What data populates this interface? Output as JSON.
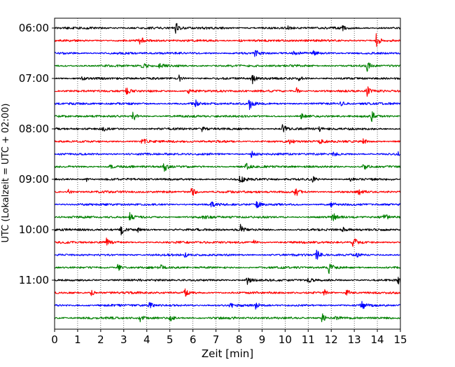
{
  "chart_data": {
    "type": "line",
    "chart_kind": "helicorder seismogram (stacked traces, 5-minute rows, 15 minutes per row)",
    "xlabel": "Zeit  [min]",
    "ylabel": "UTC (Lokalzeit = UTC + 02:00)",
    "xlim": [
      0,
      15
    ],
    "x_ticks": [
      0,
      1,
      2,
      3,
      4,
      5,
      6,
      7,
      8,
      9,
      10,
      11,
      12,
      13,
      14,
      15
    ],
    "x_tick_labels": [
      "0",
      "1",
      "2",
      "3",
      "4",
      "5",
      "6",
      "7",
      "8",
      "9",
      "10",
      "11",
      "12",
      "13",
      "14",
      "15"
    ],
    "y_tick_labels": [
      "06:00",
      "07:00",
      "08:00",
      "09:00",
      "10:00",
      "11:00"
    ],
    "vertical_grid": "dotted, every minute",
    "color_cycle": [
      "#000000",
      "#ff0000",
      "#0000ff",
      "#008000"
    ],
    "rows": [
      {
        "events": [
          {
            "t": 5.25,
            "a": 1.0
          },
          {
            "t": 6.3,
            "a": 0.35
          },
          {
            "t": 10.1,
            "a": 0.3
          },
          {
            "t": 12.5,
            "a": 0.3
          }
        ]
      },
      {
        "events": [
          {
            "t": 3.7,
            "a": 0.7
          },
          {
            "t": 8.0,
            "a": 0.25
          },
          {
            "t": 13.95,
            "a": 1.0
          }
        ]
      },
      {
        "events": [
          {
            "t": 8.7,
            "a": 0.6
          },
          {
            "t": 10.3,
            "a": 0.45
          },
          {
            "t": 11.2,
            "a": 0.4
          }
        ]
      },
      {
        "events": [
          {
            "t": 3.8,
            "a": 0.9
          },
          {
            "t": 4.55,
            "a": 0.45
          },
          {
            "t": 13.55,
            "a": 0.85
          }
        ]
      },
      {
        "events": [
          {
            "t": 1.2,
            "a": 0.3
          },
          {
            "t": 5.4,
            "a": 0.5
          },
          {
            "t": 8.55,
            "a": 1.0
          },
          {
            "t": 10.6,
            "a": 0.4
          }
        ]
      },
      {
        "events": [
          {
            "t": 3.1,
            "a": 0.75
          },
          {
            "t": 5.8,
            "a": 0.4
          },
          {
            "t": 10.5,
            "a": 0.45
          },
          {
            "t": 13.55,
            "a": 1.0
          }
        ]
      },
      {
        "events": [
          {
            "t": 6.1,
            "a": 0.6
          },
          {
            "t": 8.45,
            "a": 0.9
          },
          {
            "t": 12.4,
            "a": 0.35
          }
        ]
      },
      {
        "events": [
          {
            "t": 3.4,
            "a": 0.8
          },
          {
            "t": 10.7,
            "a": 0.4
          },
          {
            "t": 13.75,
            "a": 0.85
          }
        ]
      },
      {
        "events": [
          {
            "t": 2.1,
            "a": 0.3
          },
          {
            "t": 6.4,
            "a": 0.4
          },
          {
            "t": 9.9,
            "a": 0.9
          },
          {
            "t": 11.5,
            "a": 0.45
          }
        ]
      },
      {
        "events": [
          {
            "t": 3.8,
            "a": 0.65
          },
          {
            "t": 10.2,
            "a": 0.35
          },
          {
            "t": 11.5,
            "a": 0.55
          },
          {
            "t": 13.4,
            "a": 0.45
          }
        ]
      },
      {
        "events": [
          {
            "t": 8.55,
            "a": 0.75
          },
          {
            "t": 12.1,
            "a": 0.35
          },
          {
            "t": 14.9,
            "a": 0.4
          }
        ]
      },
      {
        "events": [
          {
            "t": 2.4,
            "a": 0.35
          },
          {
            "t": 4.75,
            "a": 0.9
          },
          {
            "t": 8.3,
            "a": 0.55
          },
          {
            "t": 13.4,
            "a": 0.6
          }
        ]
      },
      {
        "events": [
          {
            "t": 1.35,
            "a": 0.4
          },
          {
            "t": 8.05,
            "a": 0.95
          },
          {
            "t": 11.2,
            "a": 0.4
          },
          {
            "t": 12.8,
            "a": 0.35
          }
        ]
      },
      {
        "events": [
          {
            "t": 0.6,
            "a": 0.35
          },
          {
            "t": 5.95,
            "a": 0.9
          },
          {
            "t": 10.45,
            "a": 0.8
          },
          {
            "t": 13.2,
            "a": 0.45
          }
        ]
      },
      {
        "events": [
          {
            "t": 6.8,
            "a": 0.4
          },
          {
            "t": 8.75,
            "a": 0.85
          },
          {
            "t": 12.0,
            "a": 0.4
          }
        ]
      },
      {
        "events": [
          {
            "t": 3.25,
            "a": 0.75
          },
          {
            "t": 6.4,
            "a": 0.35
          },
          {
            "t": 12.05,
            "a": 0.9
          },
          {
            "t": 14.3,
            "a": 0.55
          }
        ]
      },
      {
        "events": [
          {
            "t": 2.85,
            "a": 1.0
          },
          {
            "t": 3.6,
            "a": 0.4
          },
          {
            "t": 8.05,
            "a": 0.85
          },
          {
            "t": 12.5,
            "a": 0.7
          }
        ]
      },
      {
        "events": [
          {
            "t": 2.25,
            "a": 0.6
          },
          {
            "t": 8.6,
            "a": 0.35
          },
          {
            "t": 12.95,
            "a": 0.9
          }
        ]
      },
      {
        "events": [
          {
            "t": 5.6,
            "a": 0.45
          },
          {
            "t": 11.35,
            "a": 0.9
          },
          {
            "t": 13.1,
            "a": 0.3
          }
        ]
      },
      {
        "events": [
          {
            "t": 2.75,
            "a": 0.6
          },
          {
            "t": 4.6,
            "a": 0.35
          },
          {
            "t": 11.9,
            "a": 1.0
          }
        ]
      },
      {
        "events": [
          {
            "t": 8.35,
            "a": 0.75
          },
          {
            "t": 11.0,
            "a": 0.4
          },
          {
            "t": 14.9,
            "a": 0.6
          }
        ]
      },
      {
        "events": [
          {
            "t": 1.6,
            "a": 0.45
          },
          {
            "t": 5.65,
            "a": 0.85
          },
          {
            "t": 11.7,
            "a": 0.55
          },
          {
            "t": 12.65,
            "a": 0.75
          }
        ]
      },
      {
        "events": [
          {
            "t": 4.1,
            "a": 0.55
          },
          {
            "t": 7.6,
            "a": 0.55
          },
          {
            "t": 8.7,
            "a": 0.6
          },
          {
            "t": 13.3,
            "a": 0.85
          }
        ]
      },
      {
        "events": [
          {
            "t": 3.7,
            "a": 0.6
          },
          {
            "t": 5.0,
            "a": 0.55
          },
          {
            "t": 11.6,
            "a": 0.8
          },
          {
            "t": 12.2,
            "a": 0.35
          }
        ]
      }
    ]
  }
}
